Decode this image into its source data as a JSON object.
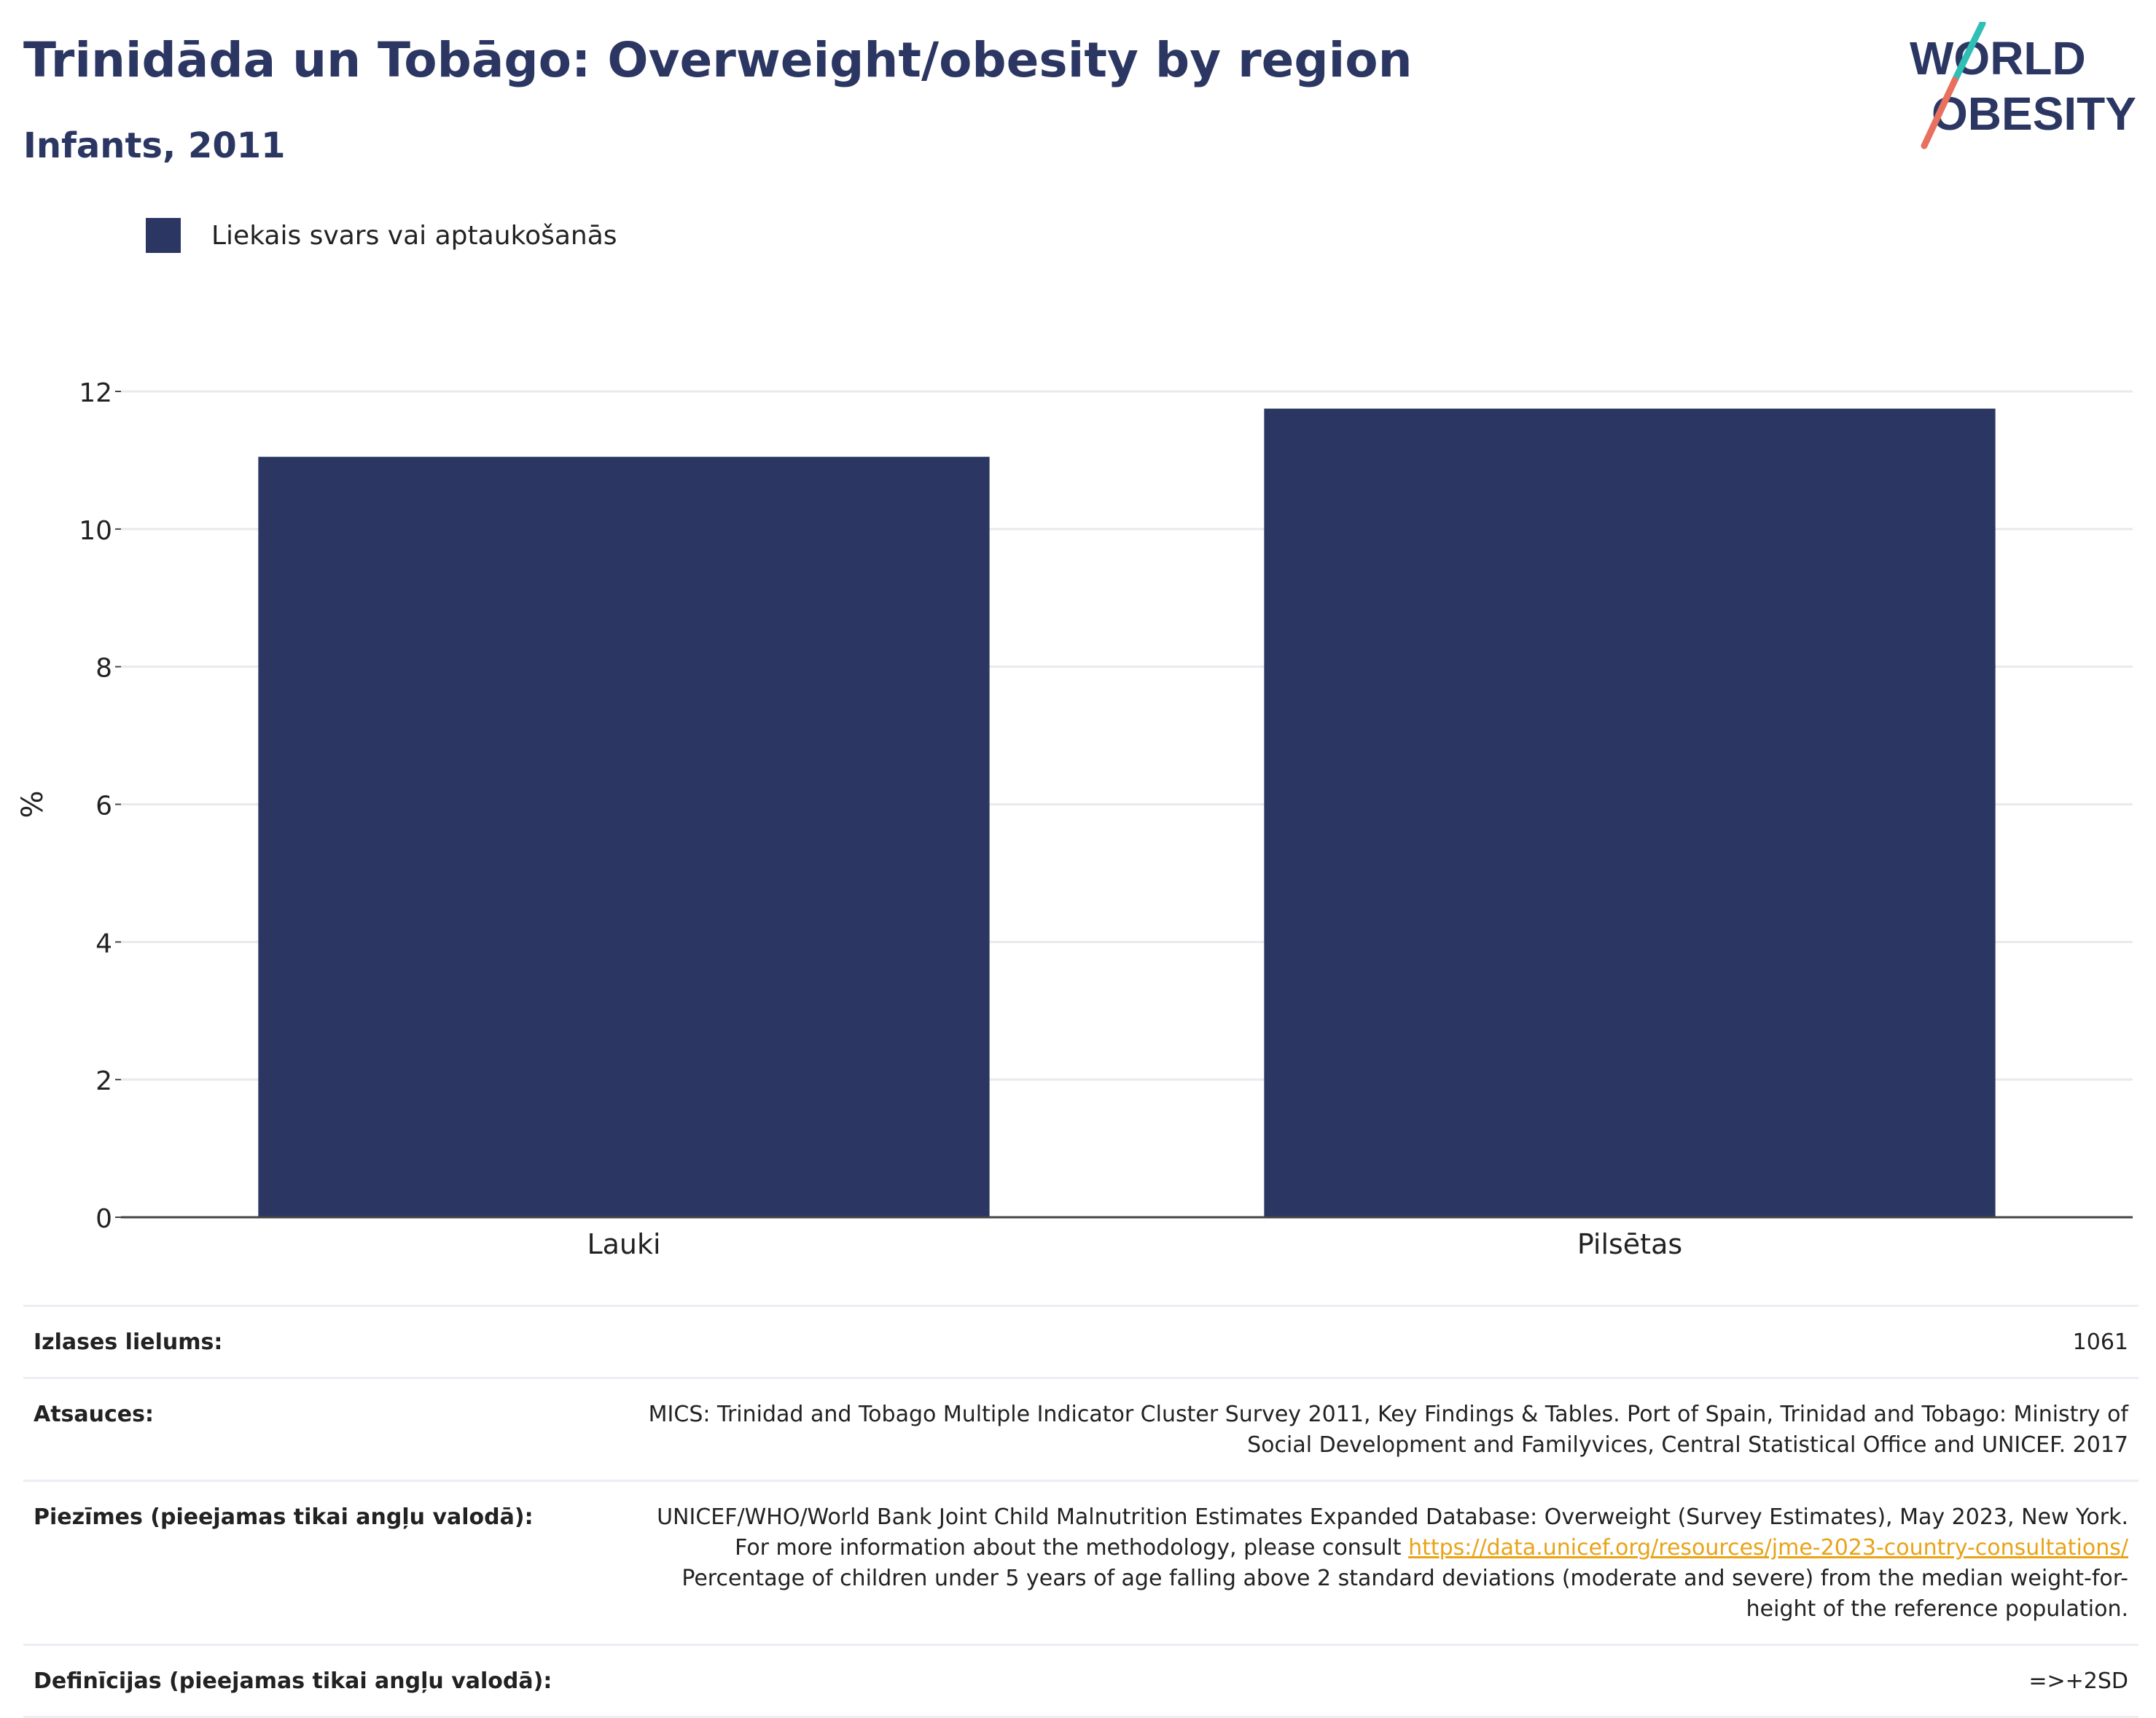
{
  "title": "Trinidāda un Tobāgo: Overweight/obesity by region",
  "subtitle": "Infants, 2011",
  "logo": {
    "line1": "WORLD",
    "line2": "OBESITY"
  },
  "colors": {
    "bar": "#2b3762",
    "title": "#2b3762",
    "grid": "#e9e9ee",
    "link": "#e8a317"
  },
  "chart_data": {
    "type": "bar",
    "categories": [
      "Lauki",
      "Pilsētas"
    ],
    "series": [
      {
        "name": "Liekais svars vai aptaukošanās",
        "values": [
          11.05,
          11.75
        ]
      }
    ],
    "ylabel": "%",
    "xlabel": "",
    "ylim": [
      0,
      12
    ],
    "yticks": [
      0,
      2,
      4,
      6,
      8,
      10,
      12
    ],
    "grid": true,
    "legend": "top-left"
  },
  "info": {
    "sample_label": "Izlases lielums:",
    "sample_value": "1061",
    "refs_label": "Atsauces:",
    "refs_value": "MICS: Trinidad and Tobago Multiple Indicator Cluster Survey 2011, Key Findings & Tables. Port of Spain, Trinidad and Tobago: Ministry of Social Development and Familyvices, Central Statistical Office and UNICEF. 2017",
    "notes_label": "Piezīmes (pieejamas tikai angļu valodā):",
    "notes_pre": "UNICEF/WHO/World Bank Joint Child Malnutrition Estimates Expanded Database: Overweight (Survey Estimates), May 2023, New York. For more information about the methodology, please consult ",
    "notes_link": "https://data.unicef.org/resources/jme-2023-country-consultations/",
    "notes_post": " Percentage of children under 5 years of age falling above 2 standard deviations (moderate and severe) from the median weight-for-height of the reference population.",
    "defs_label": "Definīcijas (pieejamas tikai angļu valodā):",
    "defs_value": "=>+2SD"
  }
}
